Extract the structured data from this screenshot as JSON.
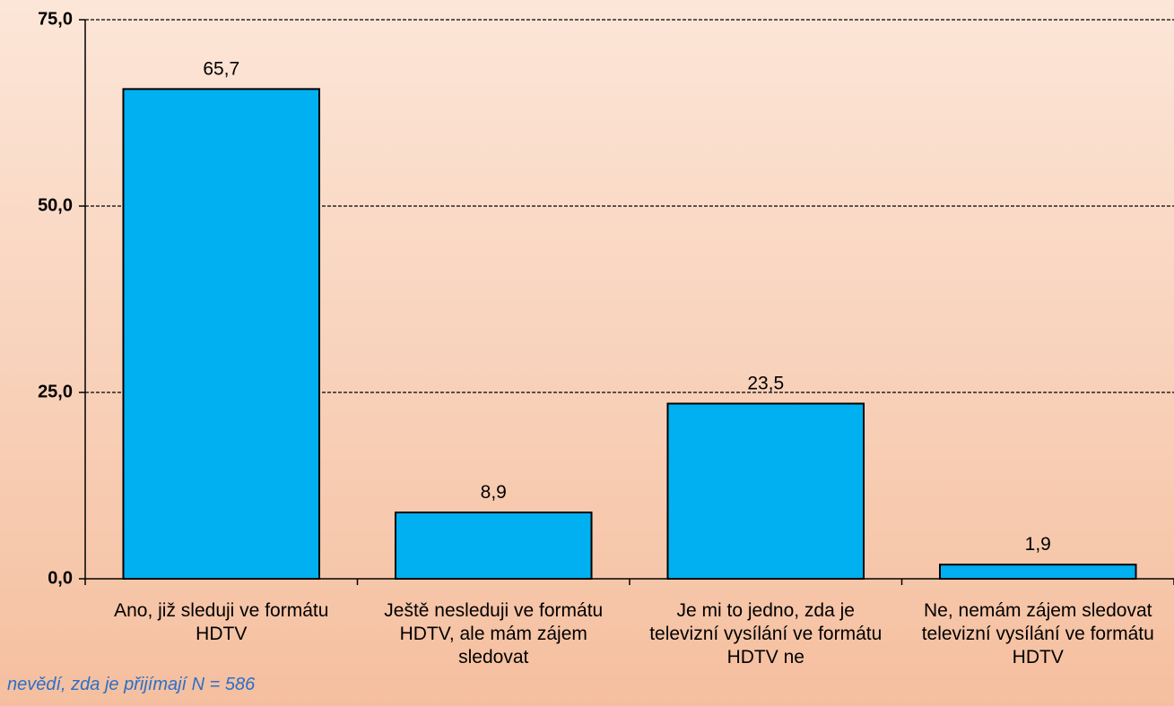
{
  "chart_data": {
    "type": "bar",
    "categories": [
      "Ano, již sleduji ve formátu HDTV",
      "Ještě nesleduji ve formátu HDTV, ale mám zájem sledovat",
      "Je mi to jedno, zda je televizní vysílání ve formátu HDTV ne",
      "Ne, nemám zájem sledovat televizní vysílání ve formátu HDTV"
    ],
    "values": [
      65.7,
      8.9,
      23.5,
      1.9
    ],
    "value_labels": [
      "65,7",
      "8,9",
      "23,5",
      "1,9"
    ],
    "color": "#00b0f0",
    "ylim": [
      0,
      75
    ],
    "yticks": [
      {
        "value": 0,
        "label": "0,0"
      },
      {
        "value": 25,
        "label": "25,0"
      },
      {
        "value": 50,
        "label": "50,0"
      },
      {
        "value": 75,
        "label": "75,0"
      }
    ],
    "grid": true,
    "annotation": "nevědí, zda je přijímají  N = 586"
  }
}
